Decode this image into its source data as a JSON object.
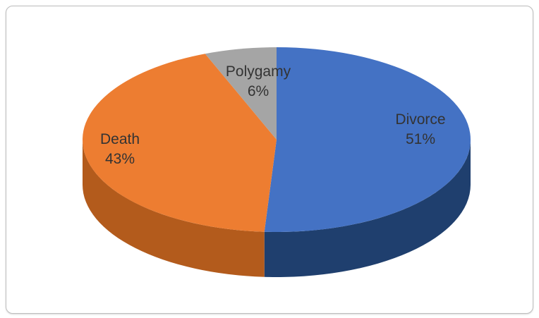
{
  "chart_data": {
    "type": "pie",
    "style": "3d",
    "title": "",
    "legend": "none",
    "slices": [
      {
        "label": "Divorce",
        "value": 51,
        "value_label": "51%",
        "color": "#4472C4",
        "side_color": "#1F3F6E"
      },
      {
        "label": "Death",
        "value": 43,
        "value_label": "43%",
        "color": "#ED7D31",
        "side_color": "#B35B1C"
      },
      {
        "label": "Polygamy",
        "value": 6,
        "value_label": "6%",
        "color": "#A5A5A5",
        "side_color": "#707070"
      }
    ]
  }
}
